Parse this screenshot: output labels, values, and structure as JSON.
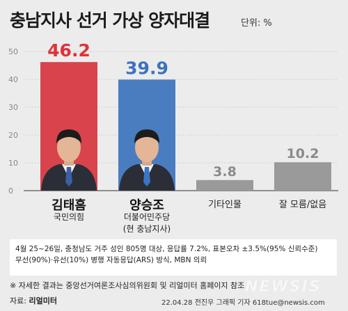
{
  "header": {
    "title": "충남지사 선거 가상 양자대결",
    "unit": "단위: %"
  },
  "chart_data": {
    "type": "bar",
    "categories": [
      "김태흠",
      "양승조",
      "기타인물",
      "잘 모름/없음"
    ],
    "values": [
      46.2,
      39.9,
      3.8,
      10.2
    ],
    "value_labels": [
      "46.2",
      "39.9",
      "3.8",
      "10.2"
    ],
    "colors": [
      "#d9434c",
      "#4a7dc0",
      "#9a9a9a",
      "#9a9a9a"
    ],
    "label_colors": [
      "#e0313c",
      "#3c72c0",
      "#8a8a8a",
      "#8a8a8a"
    ],
    "yticks": [
      0,
      10,
      20,
      30,
      40,
      50
    ],
    "ylim": [
      0,
      50
    ],
    "grid": true
  },
  "candidates": [
    {
      "name": "김태흠",
      "party": "국민의힘",
      "note": ""
    },
    {
      "name": "양승조",
      "party": "더불어민주당",
      "note": "(현 충남지사)"
    }
  ],
  "other_labels": [
    "기타인물",
    "잘 모름/없음"
  ],
  "footnote": {
    "line1": "4월 25~26일, 충청남도 거주 성인 805명 대상, 응답률 7.2%, 표본오차 ±3.5%(95% 신뢰수준)",
    "line2": "무선(90%)·유선(10%) 병행 자동응답(ARS) 방식, MBN 의뢰"
  },
  "note": "※ 자세한 결과는 중앙선거여론조사심의위원회 및 리얼미터 홈페이지 참조",
  "source": {
    "label": "자료:",
    "value": "리얼미터"
  },
  "credit": "22.04.28 전진우 그래픽 기자 618tue@newsis.com",
  "watermark": "NEWSIS"
}
